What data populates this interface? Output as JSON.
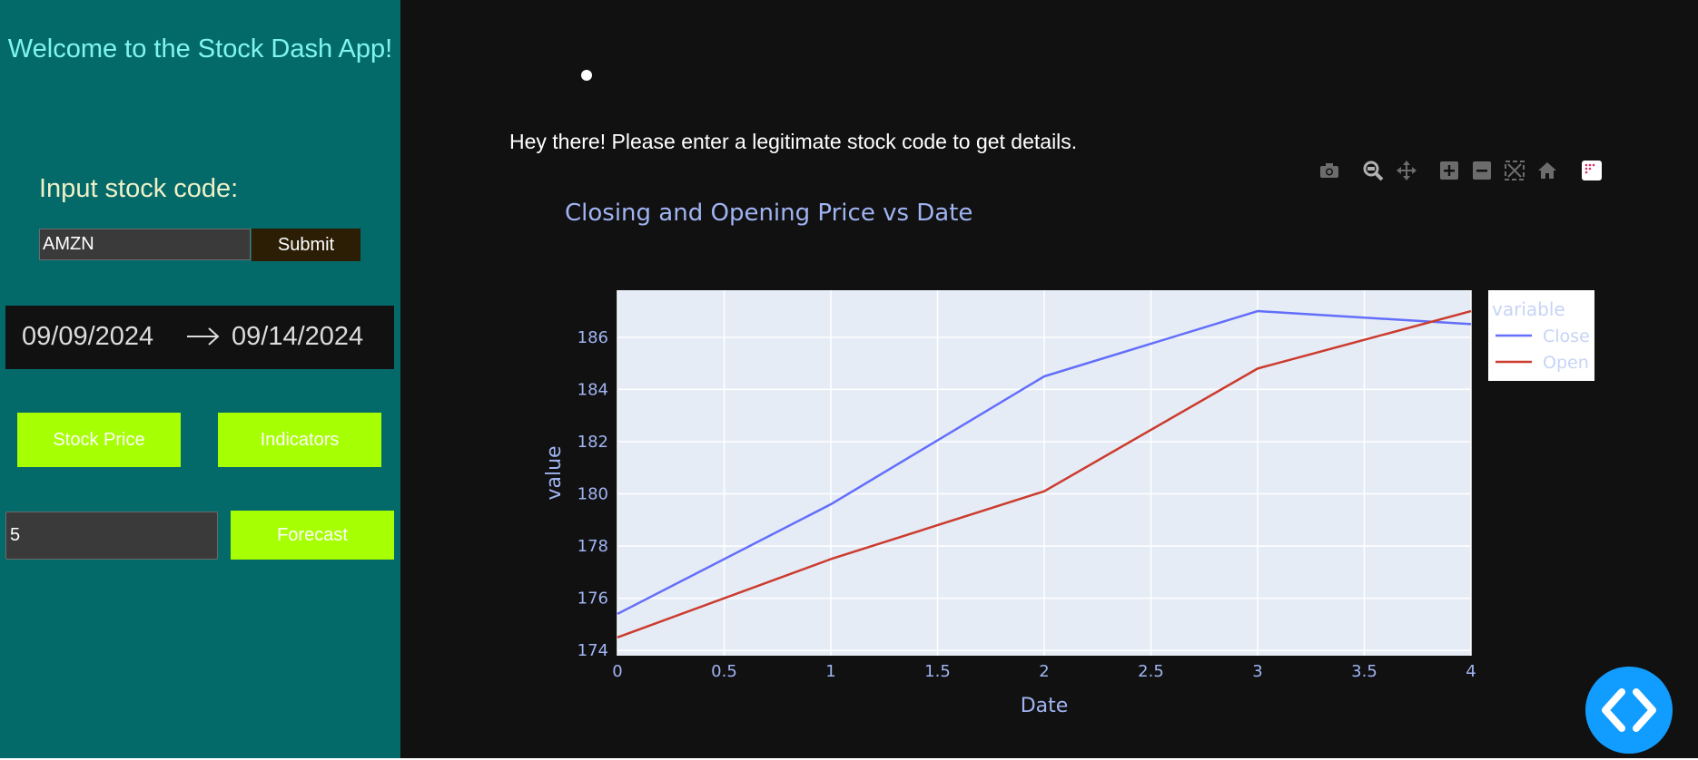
{
  "sidebar": {
    "welcome": "Welcome to the Stock Dash App!",
    "input_label": "Input stock code:",
    "stock_code_value": "AMZN",
    "submit_label": "Submit",
    "date_start": "09/09/2024",
    "date_end": "09/14/2024",
    "stock_price_label": "Stock Price",
    "indicators_label": "Indicators",
    "forecast_days_value": "5",
    "forecast_label": "Forecast"
  },
  "main": {
    "message": "Hey there! Please enter a legitimate stock code to get details.",
    "modebar": [
      "camera-icon",
      "zoom-icon",
      "pan-icon",
      "zoom-in-icon",
      "zoom-out-icon",
      "autoscale-icon",
      "reset-axes-icon",
      "plotly-logo-icon"
    ]
  },
  "chart_data": {
    "type": "line",
    "title": "Closing and Opening Price vs Date",
    "xlabel": "Date",
    "ylabel": "value",
    "x": [
      0,
      1,
      2,
      3,
      4
    ],
    "xlim": [
      0,
      4
    ],
    "ylim": [
      173.8,
      187.8
    ],
    "xticks": [
      "0",
      "0.5",
      "1",
      "1.5",
      "2",
      "2.5",
      "3",
      "3.5",
      "4"
    ],
    "yticks": [
      "174",
      "176",
      "178",
      "180",
      "182",
      "184",
      "186"
    ],
    "legend_title": "variable",
    "legend_position": "top-right",
    "grid": true,
    "series": [
      {
        "name": "Close",
        "color": "#636efa",
        "values": [
          175.4,
          179.6,
          184.5,
          187.0,
          186.5
        ]
      },
      {
        "name": "Open",
        "color": "#cc3b2d",
        "values": [
          174.5,
          177.5,
          180.1,
          184.8,
          187.0
        ]
      }
    ]
  },
  "colors": {
    "sidebar_bg": "#046a69",
    "main_bg": "#111111",
    "accent_green": "#a6ff02",
    "plot_bg": "#e5ecf6",
    "fab_blue": "#119dff"
  }
}
